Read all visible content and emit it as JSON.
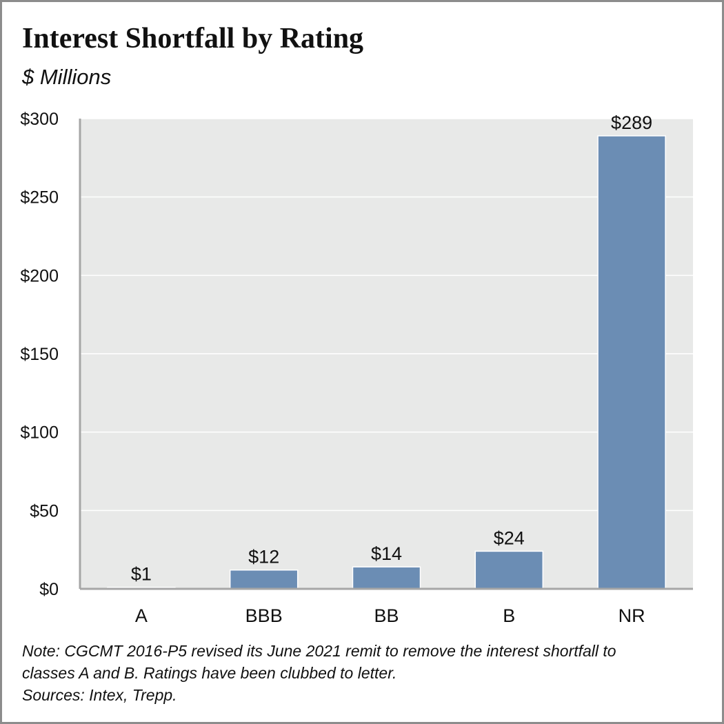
{
  "title": "Interest Shortfall by Rating",
  "subtitle": "$ Millions",
  "chart_data": {
    "type": "bar",
    "categories": [
      "A",
      "BBB",
      "BB",
      "B",
      "NR"
    ],
    "values": [
      1,
      12,
      14,
      24,
      289
    ],
    "data_labels": [
      "$1",
      "$12",
      "$14",
      "$24",
      "$289"
    ],
    "ylim": [
      0,
      300
    ],
    "yticks": [
      0,
      50,
      100,
      150,
      200,
      250,
      300
    ],
    "ytick_labels": [
      "$0",
      "$50",
      "$100",
      "$150",
      "$200",
      "$250",
      "$300"
    ],
    "grid": true,
    "legend": "none",
    "colors": {
      "bar": "#6b8db4",
      "plot_background": "#e8e9e8",
      "gridline": "#ffffff",
      "axis": "#a6a6a6"
    }
  },
  "note": {
    "line1": "Note: CGCMT 2016-P5 revised its June 2021 remit to remove the interest shortfall to",
    "line2": "classes A and B. Ratings have been clubbed to letter.",
    "line3": "Sources: Intex, Trepp."
  }
}
